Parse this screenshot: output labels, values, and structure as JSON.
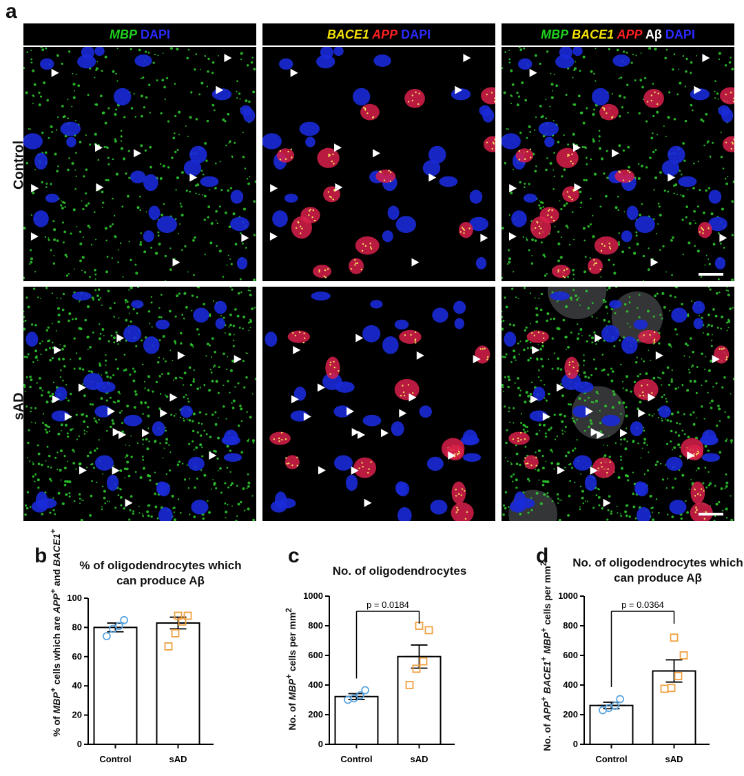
{
  "figure": {
    "panel_letters": [
      "a",
      "b",
      "c",
      "d"
    ],
    "row_labels": [
      "Control",
      "sAD"
    ],
    "column_headers": [
      [
        {
          "text": "MBP",
          "color": "#1fd21f",
          "italic": true
        },
        {
          "text": " DAPI",
          "color": "#2a2aff",
          "italic": false
        }
      ],
      [
        {
          "text": "BACE1",
          "color": "#f5e200",
          "italic": true
        },
        {
          "text": " APP",
          "color": "#ff1f1f",
          "italic": true
        },
        {
          "text": " DAPI",
          "color": "#2a2aff",
          "italic": false
        }
      ],
      [
        {
          "text": "MBP",
          "color": "#1fd21f",
          "italic": true
        },
        {
          "text": " BACE1",
          "color": "#f5e200",
          "italic": true
        },
        {
          "text": " APP",
          "color": "#ff1f1f",
          "italic": true
        },
        {
          "text": " Aβ",
          "color": "#ffffff",
          "italic": false
        },
        {
          "text": " DAPI",
          "color": "#2a2aff",
          "italic": false
        }
      ]
    ]
  },
  "chart_data": [
    {
      "panel": "b",
      "type": "bar",
      "title": "% of oligodendrocytes which can produce Aβ",
      "ylabel": "% of MBP+ cells which are APP+ and BACE1+",
      "categories": [
        "Control",
        "sAD"
      ],
      "values": [
        80,
        83
      ],
      "errors": [
        3,
        4
      ],
      "ylim": [
        0,
        100
      ],
      "yticks": [
        0,
        20,
        40,
        60,
        80,
        100
      ],
      "points": [
        [
          74,
          79,
          81,
          85
        ],
        [
          67,
          76,
          84,
          88,
          88
        ]
      ],
      "pvalue": ""
    },
    {
      "panel": "c",
      "type": "bar",
      "title": "No. of oligodendrocytes",
      "ylabel": "No. of MBP+ cells per mm2",
      "categories": [
        "Control",
        "sAD"
      ],
      "values": [
        322,
        592
      ],
      "errors": [
        20,
        78
      ],
      "ylim": [
        0,
        1000
      ],
      "yticks": [
        0,
        200,
        400,
        600,
        800,
        1000
      ],
      "points": [
        [
          300,
          310,
          330,
          365
        ],
        [
          400,
          510,
          560,
          770,
          800
        ]
      ],
      "pvalue": "p = 0.0184"
    },
    {
      "panel": "d",
      "type": "bar",
      "title": "No. of oligodendrocytes which can produce Aβ",
      "ylabel": "No. of APP+ BACE1+ MBP+ cells per mm2",
      "categories": [
        "Control",
        "sAD"
      ],
      "values": [
        262,
        495
      ],
      "errors": [
        22,
        75
      ],
      "ylim": [
        0,
        1000
      ],
      "yticks": [
        0,
        200,
        400,
        600,
        800,
        1000
      ],
      "points": [
        [
          230,
          245,
          260,
          305
        ],
        [
          375,
          380,
          460,
          600,
          720
        ]
      ],
      "pvalue": "p = 0.0364"
    }
  ],
  "colors": {
    "control_marker": "#5aa5e0",
    "sad_marker": "#f0a040",
    "bar_fill": "#ffffff",
    "axis": "#000000"
  }
}
